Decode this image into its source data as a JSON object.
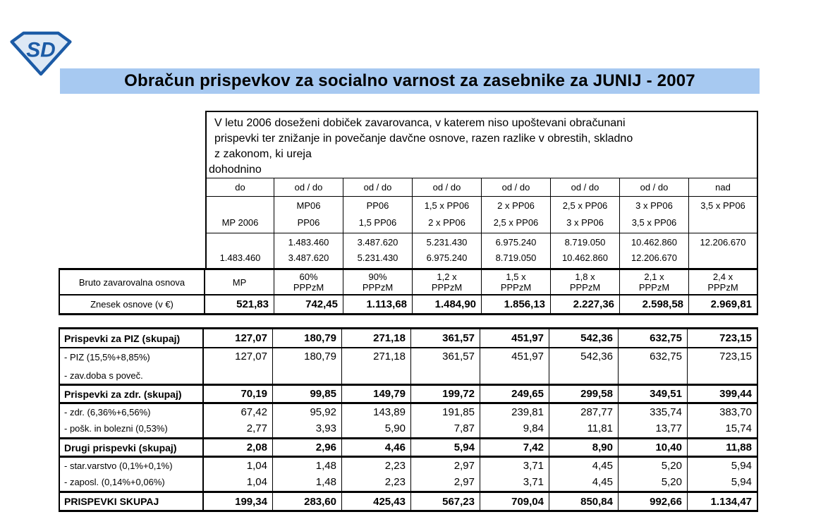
{
  "page": {
    "title": "Obračun prispevkov za socialno varnost za zasebnike za JUNIJ - 2007",
    "title_bg": "#a7c9f1",
    "title_color": "#000000",
    "logo_text": "SD",
    "logo_color": "#1c5ba6",
    "logo_fill": "#dde8f5",
    "border_color": "#000000",
    "background": "#ffffff"
  },
  "note": {
    "lines": [
      "V letu 2006 doseženi dobiček zavarovanca, v katerem niso upoštevani obračunani",
      "prispevki ter znižanje in povečanje davčne osnove, razen razlike v obrestih, skladno",
      "z zakonom, ki ureja",
      "dohodnino"
    ]
  },
  "top_table": {
    "col_headers": [
      "do",
      "od / do",
      "od / do",
      "od / do",
      "od / do",
      "od / do",
      "od / do",
      "nad"
    ],
    "multipliers": [
      [
        "",
        "MP 2006"
      ],
      [
        "MP06",
        "PP06"
      ],
      [
        "PP06",
        "1,5 PP06"
      ],
      [
        "1,5 x PP06",
        "2 x PP06"
      ],
      [
        "2 x PP06",
        "2,5 x PP06"
      ],
      [
        "2,5 x PP06",
        "3 x PP06"
      ],
      [
        "3 x PP06",
        "3,5 x PP06"
      ],
      [
        "3,5 x PP06",
        ""
      ]
    ],
    "ranges": [
      [
        "",
        "1.483.460"
      ],
      [
        "1.483.460",
        "3.487.620"
      ],
      [
        "3.487.620",
        "5.231.430"
      ],
      [
        "5.231.430",
        "6.975.240"
      ],
      [
        "6.975.240",
        "8.719.050"
      ],
      [
        "8.719.050",
        "10.462.860"
      ],
      [
        "10.462.860",
        "12.206.670"
      ],
      [
        "12.206.670",
        ""
      ]
    ],
    "bruto_label": "Bruto zavarovalna osnova",
    "bruto_cells": [
      [
        "MP",
        ""
      ],
      [
        "60%",
        "PPPzM"
      ],
      [
        "90%",
        "PPPzM"
      ],
      [
        "1,2 x",
        "PPPzM"
      ],
      [
        "1,5 x",
        "PPPzM"
      ],
      [
        "1,8 x",
        "PPPzM"
      ],
      [
        "2,1 x",
        "PPPzM"
      ],
      [
        "2,4 x",
        "PPPzM"
      ]
    ],
    "znesek_label": "Znesek osnove (v €)",
    "znesek_values": [
      "521,83",
      "742,45",
      "1.113,68",
      "1.484,90",
      "1.856,13",
      "2.227,36",
      "2.598,58",
      "2.969,81"
    ]
  },
  "bottom_table": {
    "rows": [
      {
        "label_lines": [
          "Prispevki za PIZ (skupaj)"
        ],
        "bold": true,
        "values": [
          "127,07",
          "180,79",
          "271,18",
          "361,57",
          "451,97",
          "542,36",
          "632,75",
          "723,15"
        ]
      },
      {
        "label_lines": [
          "- PIZ (15,5%+8,85%)",
          "- zav.doba s poveč."
        ],
        "bold": false,
        "values": [
          "127,07",
          "180,79",
          "271,18",
          "361,57",
          "451,97",
          "542,36",
          "632,75",
          "723,15"
        ]
      },
      {
        "label_lines": [
          "Prispevki za zdr. (skupaj)"
        ],
        "bold": true,
        "values": [
          "70,19",
          "99,85",
          "149,79",
          "199,72",
          "249,65",
          "299,58",
          "349,51",
          "399,44"
        ]
      },
      {
        "label_lines": [
          "- zdr. (6,36%+6,56%)"
        ],
        "bold": false,
        "values": [
          "67,42",
          "95,92",
          "143,89",
          "191,85",
          "239,81",
          "287,77",
          "335,74",
          "383,70"
        ]
      },
      {
        "label_lines": [
          "- pošk. in bolezni (0,53%)"
        ],
        "bold": false,
        "values": [
          "2,77",
          "3,93",
          "5,90",
          "7,87",
          "9,84",
          "11,81",
          "13,77",
          "15,74"
        ]
      },
      {
        "label_lines": [
          "Drugi prispevki (skupaj)"
        ],
        "bold": true,
        "values": [
          "2,08",
          "2,96",
          "4,46",
          "5,94",
          "7,42",
          "8,90",
          "10,40",
          "11,88"
        ]
      },
      {
        "label_lines": [
          "- star.varstvo (0,1%+0,1%)"
        ],
        "bold": false,
        "values": [
          "1,04",
          "1,48",
          "2,23",
          "2,97",
          "3,71",
          "4,45",
          "5,20",
          "5,94"
        ]
      },
      {
        "label_lines": [
          "- zaposl. (0,14%+0,06%)"
        ],
        "bold": false,
        "values": [
          "1,04",
          "1,48",
          "2,23",
          "2,97",
          "3,71",
          "4,45",
          "5,20",
          "5,94"
        ]
      },
      {
        "label_lines": [
          "PRISPEVKI SKUPAJ"
        ],
        "bold": true,
        "values": [
          "199,34",
          "283,60",
          "425,43",
          "567,23",
          "709,04",
          "850,84",
          "992,66",
          "1.134,47"
        ]
      }
    ]
  }
}
